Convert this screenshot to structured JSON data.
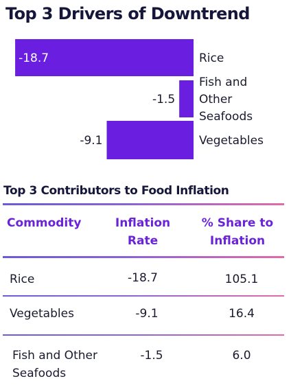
{
  "chart_data": {
    "type": "bar",
    "title": "Top 3 Drivers of Downtrend",
    "categories": [
      "Rice",
      "Fish and Other Seafoods",
      "Vegetables"
    ],
    "category_lines": [
      [
        "Rice"
      ],
      [
        "Fish and",
        "Other",
        "Seafoods"
      ],
      [
        "Vegetables"
      ]
    ],
    "values": [
      -18.7,
      -1.5,
      -9.1
    ],
    "value_labels": [
      "-18.7",
      "-1.5",
      "-9.1"
    ],
    "orientation": "horizontal",
    "bar_color": "#6a1fe0"
  },
  "table": {
    "title": "Top 3 Contributors to Food Inflation",
    "headers": [
      "Commodity",
      "Inflation Rate",
      "% Share to Inflation"
    ],
    "header_lines": [
      [
        "Commodity"
      ],
      [
        "Inflation",
        "Rate"
      ],
      [
        "% Share to",
        "Inflation"
      ]
    ],
    "rows": [
      {
        "commodity": "Rice",
        "commodity_lines": [
          "Rice"
        ],
        "rate": "-18.7",
        "share": "105.1"
      },
      {
        "commodity": "Vegetables",
        "commodity_lines": [
          "Vegetables"
        ],
        "rate": "-9.1",
        "share": "16.4"
      },
      {
        "commodity": "Fish and Other Seafoods",
        "commodity_lines": [
          "Fish and Other",
          "Seafoods"
        ],
        "rate": "-1.5",
        "share": "6.0"
      }
    ],
    "header_color": "#6b23d8"
  }
}
